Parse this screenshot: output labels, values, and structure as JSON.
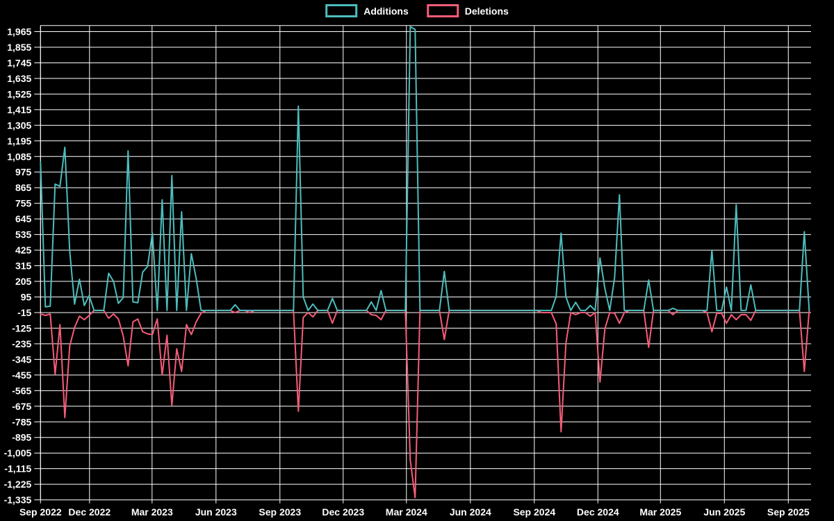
{
  "chart_data": {
    "type": "line",
    "title": "",
    "xlabel": "",
    "ylabel": "",
    "legend_position": "top-center",
    "grid": true,
    "background_color": "#000000",
    "grid_color": "#ffffff",
    "text_color": "#ffffff",
    "x_unit": "week",
    "start_week": "2022-09-18",
    "week_interval_days": 7,
    "num_points": 159,
    "ylim": [
      -1335,
      2010
    ],
    "y_tick_values": [
      1965,
      1855,
      1745,
      1635,
      1525,
      1415,
      1305,
      1195,
      1085,
      975,
      865,
      755,
      645,
      535,
      425,
      315,
      205,
      95,
      -15,
      -125,
      -235,
      -345,
      -455,
      -565,
      -675,
      -785,
      -895,
      -1005,
      -1115,
      -1225,
      -1335
    ],
    "y_tick_labels": [
      "1,965",
      "1,855",
      "1,745",
      "1,635",
      "1,525",
      "1,415",
      "1,305",
      "1,195",
      "1,085",
      "975",
      "865",
      "755",
      "645",
      "535",
      "425",
      "315",
      "205",
      "95",
      "-15",
      "-125",
      "-235",
      "-345",
      "-455",
      "-565",
      "-675",
      "-785",
      "-895",
      "-1,005",
      "-1,115",
      "-1,225",
      "-1,335"
    ],
    "x_tick_weeks": [
      0,
      10.07,
      22.93,
      36.07,
      49.21,
      62.21,
      75.21,
      88.36,
      101.5,
      114.57,
      127.43,
      140.57,
      153.71
    ],
    "x_tick_labels": [
      "Sep 2022",
      "Dec 2022",
      "Mar 2023",
      "Jun 2023",
      "Sep 2023",
      "Dec 2023",
      "Mar 2024",
      "Jun 2024",
      "Sep 2024",
      "Dec 2024",
      "Mar 2025",
      "Jun 2025",
      "Sep 2025"
    ],
    "series": [
      {
        "name": "Additions",
        "color": "#4dbdbd",
        "values": [
          1045,
          25,
          30,
          890,
          875,
          1150,
          420,
          45,
          220,
          35,
          105,
          0,
          0,
          0,
          262,
          205,
          50,
          90,
          1125,
          60,
          55,
          270,
          310,
          545,
          0,
          780,
          0,
          950,
          0,
          695,
          0,
          400,
          225,
          0,
          0,
          0,
          0,
          0,
          0,
          0,
          40,
          0,
          0,
          0,
          0,
          0,
          0,
          0,
          0,
          0,
          0,
          0,
          0,
          1440,
          95,
          0,
          45,
          0,
          0,
          0,
          85,
          0,
          0,
          0,
          0,
          0,
          0,
          0,
          60,
          0,
          140,
          0,
          0,
          0,
          0,
          0,
          2000,
          1980,
          0,
          0,
          0,
          0,
          0,
          275,
          0,
          0,
          0,
          0,
          0,
          0,
          0,
          0,
          0,
          0,
          0,
          0,
          0,
          0,
          0,
          0,
          0,
          0,
          0,
          0,
          0,
          0,
          100,
          545,
          95,
          0,
          58,
          0,
          0,
          35,
          0,
          370,
          155,
          0,
          230,
          815,
          0,
          0,
          0,
          0,
          0,
          215,
          0,
          0,
          0,
          0,
          15,
          0,
          0,
          0,
          0,
          0,
          0,
          0,
          425,
          0,
          0,
          165,
          0,
          745,
          0,
          0,
          180,
          0,
          0,
          0,
          0,
          0,
          0,
          0,
          0,
          0,
          0,
          555,
          0
        ]
      },
      {
        "name": "Deletions",
        "color": "#f75c78",
        "values": [
          -25,
          -35,
          -25,
          -450,
          -100,
          -755,
          -250,
          -120,
          -40,
          -65,
          -35,
          0,
          0,
          0,
          -55,
          -25,
          -60,
          -180,
          -390,
          -80,
          -60,
          -150,
          -165,
          -170,
          -60,
          -455,
          -175,
          -670,
          -270,
          -430,
          -100,
          -170,
          -80,
          -20,
          0,
          0,
          0,
          0,
          0,
          0,
          -15,
          0,
          0,
          -15,
          0,
          0,
          0,
          0,
          0,
          0,
          0,
          0,
          0,
          -710,
          -50,
          -15,
          -45,
          0,
          0,
          0,
          -90,
          0,
          0,
          0,
          0,
          0,
          0,
          0,
          -30,
          -35,
          -65,
          0,
          0,
          0,
          0,
          0,
          -1055,
          -1320,
          0,
          0,
          0,
          0,
          0,
          -205,
          0,
          0,
          0,
          0,
          0,
          0,
          0,
          0,
          0,
          0,
          0,
          0,
          0,
          0,
          0,
          0,
          0,
          0,
          0,
          -15,
          -15,
          -15,
          -95,
          -855,
          -230,
          -15,
          -30,
          -15,
          -15,
          -40,
          -15,
          -505,
          -130,
          -15,
          -20,
          -90,
          -15,
          0,
          0,
          0,
          0,
          -260,
          0,
          0,
          0,
          0,
          -30,
          0,
          0,
          0,
          0,
          0,
          0,
          -15,
          -150,
          -20,
          -20,
          -90,
          -30,
          -65,
          -30,
          -30,
          -70,
          0,
          0,
          0,
          0,
          0,
          0,
          0,
          0,
          0,
          0,
          -430,
          0
        ]
      }
    ]
  },
  "legend": {
    "additions_label": "Additions",
    "deletions_label": "Deletions"
  },
  "colors": {
    "additions": "#4dbdbd",
    "deletions": "#f75c78",
    "background": "#000000",
    "grid": "#ffffff",
    "text": "#ffffff"
  }
}
